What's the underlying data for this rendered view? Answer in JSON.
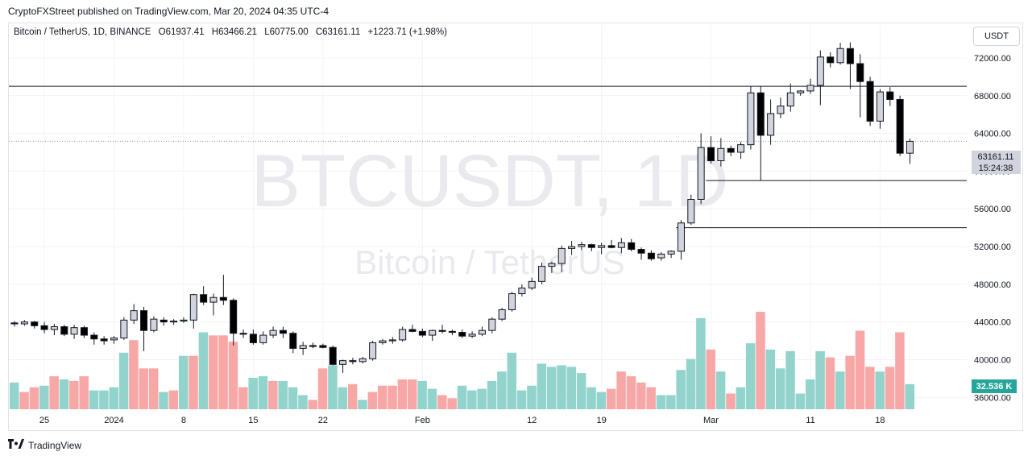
{
  "header": {
    "published": "CryptoFXStreet published on TradingView.com, Mar 20, 2024 04:35 UTC-4"
  },
  "legend": {
    "symbol": "Bitcoin / TetherUS, 1D, BINANCE",
    "open": "O61937.41",
    "high": "H63466.21",
    "low": "L60775.00",
    "close": "C63161.11",
    "change": "+1223.71 (+1.98%)"
  },
  "unit_button": "USDT",
  "watermark": {
    "line1": "BTCUSDT, 1D",
    "line2": "Bitcoin / TetherUS"
  },
  "price_badge": {
    "price": "63161.11",
    "countdown": "15:24:38"
  },
  "volume_badge": "32.536 K",
  "footer": {
    "brand": "TradingView"
  },
  "colors": {
    "up_candle": "#d1d4dc",
    "down_candle": "#000000",
    "vol_up": "#92d3cc",
    "vol_down": "#f7a7a6",
    "grid": "#f0f3fa"
  },
  "chart_data": {
    "type": "candlestick",
    "yaxis_ticks": [
      36000,
      40000,
      44000,
      48000,
      52000,
      56000,
      60000,
      64000,
      68000,
      72000
    ],
    "ylim": [
      35000,
      75500
    ],
    "xaxis_ticks": [
      {
        "label": "25",
        "index": 3
      },
      {
        "label": "2024",
        "index": 10
      },
      {
        "label": "8",
        "index": 17
      },
      {
        "label": "15",
        "index": 24
      },
      {
        "label": "22",
        "index": 31
      },
      {
        "label": "Feb",
        "index": 41
      },
      {
        "label": "12",
        "index": 52
      },
      {
        "label": "19",
        "index": 59
      },
      {
        "label": "Mar",
        "index": 70
      },
      {
        "label": "11",
        "index": 80
      },
      {
        "label": "18",
        "index": 87
      }
    ],
    "horizontal_lines": [
      {
        "price": 69000,
        "from_index": -1,
        "to_index": 100
      },
      {
        "price": 59000,
        "from_index": 69.5,
        "to_index": 100
      },
      {
        "price": 54000,
        "from_index": 66.5,
        "to_index": 100
      }
    ],
    "candles": [
      {
        "o": 43900,
        "h": 44100,
        "l": 43500,
        "c": 43800
      },
      {
        "o": 43800,
        "h": 44200,
        "l": 43600,
        "c": 44000
      },
      {
        "o": 44000,
        "h": 44100,
        "l": 43300,
        "c": 43600
      },
      {
        "o": 43600,
        "h": 44000,
        "l": 42800,
        "c": 43200
      },
      {
        "o": 43200,
        "h": 43800,
        "l": 42600,
        "c": 43500
      },
      {
        "o": 43500,
        "h": 43700,
        "l": 42500,
        "c": 42700
      },
      {
        "o": 42700,
        "h": 43700,
        "l": 42200,
        "c": 43400
      },
      {
        "o": 43400,
        "h": 43600,
        "l": 42300,
        "c": 42600
      },
      {
        "o": 42600,
        "h": 42900,
        "l": 41600,
        "c": 42200
      },
      {
        "o": 42200,
        "h": 42500,
        "l": 41600,
        "c": 42000
      },
      {
        "o": 42100,
        "h": 42500,
        "l": 41700,
        "c": 42300
      },
      {
        "o": 42300,
        "h": 44500,
        "l": 42100,
        "c": 44200
      },
      {
        "o": 44200,
        "h": 45900,
        "l": 43800,
        "c": 45200
      },
      {
        "o": 45200,
        "h": 45600,
        "l": 40900,
        "c": 43100
      },
      {
        "o": 43100,
        "h": 44600,
        "l": 42900,
        "c": 44300
      },
      {
        "o": 44200,
        "h": 44500,
        "l": 43600,
        "c": 44000
      },
      {
        "o": 44000,
        "h": 44300,
        "l": 43700,
        "c": 44100
      },
      {
        "o": 44100,
        "h": 44500,
        "l": 43900,
        "c": 44200
      },
      {
        "o": 44200,
        "h": 47000,
        "l": 43300,
        "c": 46900
      },
      {
        "o": 46900,
        "h": 47800,
        "l": 45800,
        "c": 46100
      },
      {
        "o": 46100,
        "h": 47000,
        "l": 44700,
        "c": 46600
      },
      {
        "o": 46600,
        "h": 49000,
        "l": 45800,
        "c": 46300
      },
      {
        "o": 46300,
        "h": 46500,
        "l": 41500,
        "c": 42800
      },
      {
        "o": 42800,
        "h": 43200,
        "l": 42300,
        "c": 42700
      },
      {
        "o": 42700,
        "h": 43200,
        "l": 41600,
        "c": 41800
      },
      {
        "o": 41800,
        "h": 43000,
        "l": 41600,
        "c": 42600
      },
      {
        "o": 42600,
        "h": 43500,
        "l": 42300,
        "c": 43100
      },
      {
        "o": 43100,
        "h": 43500,
        "l": 42300,
        "c": 42800
      },
      {
        "o": 42800,
        "h": 43000,
        "l": 40700,
        "c": 41200
      },
      {
        "o": 41200,
        "h": 41900,
        "l": 40500,
        "c": 41500
      },
      {
        "o": 41500,
        "h": 41800,
        "l": 41200,
        "c": 41400
      },
      {
        "o": 41500,
        "h": 41700,
        "l": 41200,
        "c": 41300
      },
      {
        "o": 41300,
        "h": 41500,
        "l": 39400,
        "c": 39500
      },
      {
        "o": 39500,
        "h": 40000,
        "l": 38600,
        "c": 39900
      },
      {
        "o": 39900,
        "h": 40200,
        "l": 39500,
        "c": 39800
      },
      {
        "o": 39800,
        "h": 40300,
        "l": 39600,
        "c": 40100
      },
      {
        "o": 40100,
        "h": 42000,
        "l": 39900,
        "c": 41800
      },
      {
        "o": 41800,
        "h": 42200,
        "l": 41600,
        "c": 42000
      },
      {
        "o": 42000,
        "h": 42400,
        "l": 41700,
        "c": 42100
      },
      {
        "o": 42100,
        "h": 43500,
        "l": 41900,
        "c": 43200
      },
      {
        "o": 43200,
        "h": 43700,
        "l": 42900,
        "c": 43000
      },
      {
        "o": 43000,
        "h": 43300,
        "l": 42400,
        "c": 42600
      },
      {
        "o": 42600,
        "h": 43200,
        "l": 42000,
        "c": 43100
      },
      {
        "o": 43100,
        "h": 43700,
        "l": 42800,
        "c": 43000
      },
      {
        "o": 43000,
        "h": 43200,
        "l": 42600,
        "c": 42900
      },
      {
        "o": 42900,
        "h": 43200,
        "l": 42300,
        "c": 42500
      },
      {
        "o": 42500,
        "h": 43000,
        "l": 42300,
        "c": 42700
      },
      {
        "o": 42700,
        "h": 43500,
        "l": 42500,
        "c": 43100
      },
      {
        "o": 43100,
        "h": 44500,
        "l": 42800,
        "c": 44300
      },
      {
        "o": 44300,
        "h": 45500,
        "l": 44100,
        "c": 45300
      },
      {
        "o": 45300,
        "h": 47200,
        "l": 45100,
        "c": 47000
      },
      {
        "o": 47000,
        "h": 48000,
        "l": 46700,
        "c": 47600
      },
      {
        "o": 47600,
        "h": 48700,
        "l": 47400,
        "c": 48300
      },
      {
        "o": 48300,
        "h": 50300,
        "l": 48000,
        "c": 49900
      },
      {
        "o": 49900,
        "h": 50400,
        "l": 49200,
        "c": 50200
      },
      {
        "o": 50200,
        "h": 52100,
        "l": 49300,
        "c": 51800
      },
      {
        "o": 51800,
        "h": 52600,
        "l": 51100,
        "c": 52000
      },
      {
        "o": 52000,
        "h": 52500,
        "l": 51600,
        "c": 52200
      },
      {
        "o": 52200,
        "h": 52300,
        "l": 51500,
        "c": 51900
      },
      {
        "o": 51900,
        "h": 52400,
        "l": 51200,
        "c": 52100
      },
      {
        "o": 52100,
        "h": 52700,
        "l": 51800,
        "c": 51900
      },
      {
        "o": 51900,
        "h": 52900,
        "l": 51300,
        "c": 52400
      },
      {
        "o": 52400,
        "h": 52800,
        "l": 51500,
        "c": 51700
      },
      {
        "o": 51700,
        "h": 51900,
        "l": 50600,
        "c": 51300
      },
      {
        "o": 51300,
        "h": 51600,
        "l": 50500,
        "c": 50700
      },
      {
        "o": 50800,
        "h": 51400,
        "l": 50500,
        "c": 51200
      },
      {
        "o": 51200,
        "h": 51600,
        "l": 50800,
        "c": 51500
      },
      {
        "o": 51500,
        "h": 54800,
        "l": 50600,
        "c": 54500
      },
      {
        "o": 54500,
        "h": 57500,
        "l": 54300,
        "c": 57000
      },
      {
        "o": 57000,
        "h": 64000,
        "l": 56500,
        "c": 62500
      },
      {
        "o": 62500,
        "h": 63700,
        "l": 60800,
        "c": 61100
      },
      {
        "o": 61100,
        "h": 63500,
        "l": 60500,
        "c": 62400
      },
      {
        "o": 62400,
        "h": 62700,
        "l": 61600,
        "c": 62000
      },
      {
        "o": 62000,
        "h": 63100,
        "l": 61300,
        "c": 62800
      },
      {
        "o": 62800,
        "h": 69000,
        "l": 62300,
        "c": 68300
      },
      {
        "o": 68300,
        "h": 69000,
        "l": 59000,
        "c": 63800
      },
      {
        "o": 63800,
        "h": 67600,
        "l": 62800,
        "c": 66100
      },
      {
        "o": 66100,
        "h": 67800,
        "l": 65600,
        "c": 66900
      },
      {
        "o": 66900,
        "h": 69300,
        "l": 66300,
        "c": 68300
      },
      {
        "o": 68300,
        "h": 68600,
        "l": 68000,
        "c": 68500
      },
      {
        "o": 68500,
        "h": 69800,
        "l": 68200,
        "c": 69100
      },
      {
        "o": 69100,
        "h": 72800,
        "l": 67000,
        "c": 72100
      },
      {
        "o": 72100,
        "h": 72600,
        "l": 71000,
        "c": 71500
      },
      {
        "o": 71500,
        "h": 73600,
        "l": 71300,
        "c": 73000
      },
      {
        "o": 73000,
        "h": 73650,
        "l": 68700,
        "c": 71400
      },
      {
        "o": 71400,
        "h": 72400,
        "l": 65700,
        "c": 69500
      },
      {
        "o": 69500,
        "h": 70000,
        "l": 64800,
        "c": 65300
      },
      {
        "o": 65300,
        "h": 68700,
        "l": 64500,
        "c": 68400
      },
      {
        "o": 68400,
        "h": 68900,
        "l": 66900,
        "c": 67600
      },
      {
        "o": 67600,
        "h": 68000,
        "l": 61600,
        "c": 61900
      },
      {
        "o": 61900,
        "h": 63450,
        "l": 60775,
        "c": 63160
      }
    ],
    "volumes": [
      {
        "v": 17,
        "up": true
      },
      {
        "v": 11,
        "up": false
      },
      {
        "v": 14,
        "up": false
      },
      {
        "v": 15,
        "up": true
      },
      {
        "v": 21,
        "up": false
      },
      {
        "v": 19,
        "up": true
      },
      {
        "v": 18,
        "up": false
      },
      {
        "v": 21,
        "up": false
      },
      {
        "v": 12,
        "up": true
      },
      {
        "v": 12,
        "up": true
      },
      {
        "v": 14,
        "up": true
      },
      {
        "v": 36,
        "up": true
      },
      {
        "v": 44,
        "up": false
      },
      {
        "v": 26,
        "up": false
      },
      {
        "v": 26,
        "up": false
      },
      {
        "v": 11,
        "up": true
      },
      {
        "v": 12,
        "up": false
      },
      {
        "v": 34,
        "up": true
      },
      {
        "v": 34,
        "up": false
      },
      {
        "v": 49,
        "up": true
      },
      {
        "v": 47,
        "up": false
      },
      {
        "v": 47,
        "up": false
      },
      {
        "v": 43,
        "up": false
      },
      {
        "v": 14,
        "up": false
      },
      {
        "v": 20,
        "up": true
      },
      {
        "v": 21,
        "up": true
      },
      {
        "v": 18,
        "up": false
      },
      {
        "v": 18,
        "up": true
      },
      {
        "v": 14,
        "up": true
      },
      {
        "v": 9,
        "up": true
      },
      {
        "v": 6,
        "up": false
      },
      {
        "v": 26,
        "up": false
      },
      {
        "v": 28,
        "up": true
      },
      {
        "v": 14,
        "up": true
      },
      {
        "v": 16,
        "up": false
      },
      {
        "v": 6,
        "up": true
      },
      {
        "v": 11,
        "up": false
      },
      {
        "v": 15,
        "up": false
      },
      {
        "v": 15,
        "up": false
      },
      {
        "v": 19,
        "up": false
      },
      {
        "v": 19,
        "up": false
      },
      {
        "v": 18,
        "up": true
      },
      {
        "v": 13,
        "up": true
      },
      {
        "v": 9,
        "up": false
      },
      {
        "v": 7,
        "up": false
      },
      {
        "v": 15,
        "up": true
      },
      {
        "v": 12,
        "up": true
      },
      {
        "v": 13,
        "up": true
      },
      {
        "v": 18,
        "up": true
      },
      {
        "v": 24,
        "up": true
      },
      {
        "v": 36,
        "up": true
      },
      {
        "v": 12,
        "up": true
      },
      {
        "v": 15,
        "up": true
      },
      {
        "v": 29,
        "up": true
      },
      {
        "v": 27,
        "up": true
      },
      {
        "v": 28,
        "up": true
      },
      {
        "v": 27,
        "up": true
      },
      {
        "v": 23,
        "up": true
      },
      {
        "v": 14,
        "up": true
      },
      {
        "v": 11,
        "up": true
      },
      {
        "v": 13,
        "up": false
      },
      {
        "v": 24,
        "up": false
      },
      {
        "v": 21,
        "up": false
      },
      {
        "v": 17,
        "up": false
      },
      {
        "v": 14,
        "up": false
      },
      {
        "v": 9,
        "up": true
      },
      {
        "v": 9,
        "up": true
      },
      {
        "v": 25,
        "up": true
      },
      {
        "v": 32,
        "up": true
      },
      {
        "v": 58,
        "up": true
      },
      {
        "v": 38,
        "up": false
      },
      {
        "v": 24,
        "up": true
      },
      {
        "v": 10,
        "up": false
      },
      {
        "v": 14,
        "up": true
      },
      {
        "v": 42,
        "up": true
      },
      {
        "v": 62,
        "up": false
      },
      {
        "v": 38,
        "up": true
      },
      {
        "v": 26,
        "up": true
      },
      {
        "v": 37,
        "up": true
      },
      {
        "v": 10,
        "up": true
      },
      {
        "v": 19,
        "up": true
      },
      {
        "v": 37,
        "up": true
      },
      {
        "v": 33,
        "up": false
      },
      {
        "v": 24,
        "up": true
      },
      {
        "v": 34,
        "up": false
      },
      {
        "v": 50,
        "up": false
      },
      {
        "v": 27,
        "up": false
      },
      {
        "v": 24,
        "up": true
      },
      {
        "v": 27,
        "up": false
      },
      {
        "v": 49,
        "up": false
      },
      {
        "v": 16,
        "up": true
      }
    ]
  }
}
